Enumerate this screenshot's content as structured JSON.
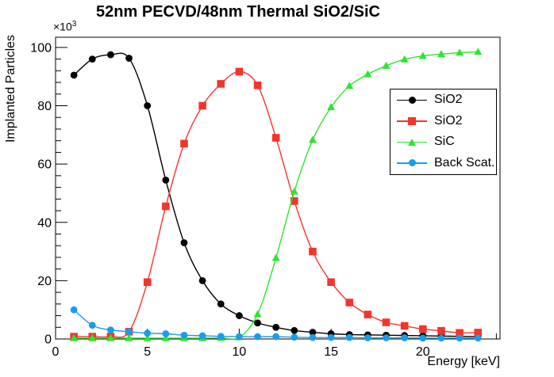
{
  "title": "52nm PECVD/48nm Thermal SiO2/SiC",
  "axes": {
    "x": {
      "title": "Energy [keV]",
      "ticks": [
        0,
        5,
        10,
        15,
        20
      ],
      "minor_step": 1,
      "range": [
        0,
        24.2
      ]
    },
    "y": {
      "title": "Implanted Particles",
      "exponent_base": "×10",
      "exponent": "3",
      "ticks": [
        0,
        20,
        40,
        60,
        80,
        100
      ],
      "minor_step": 4,
      "range": [
        0,
        103.5
      ]
    }
  },
  "legend": {
    "position": "right-middle",
    "items": [
      {
        "label": "SiO2",
        "marker": "circle",
        "color": "#000000"
      },
      {
        "label": "SiO2",
        "marker": "square",
        "color": "#f5342c"
      },
      {
        "label": "SiC",
        "marker": "triangle",
        "color": "#2ee52e"
      },
      {
        "label": "Back Scat.",
        "marker": "circle",
        "color": "#1a9ced"
      }
    ]
  },
  "chart_data": {
    "type": "line",
    "title": "52nm PECVD/48nm Thermal SiO2/SiC",
    "xlabel": "Energy [keV]",
    "ylabel": "Implanted Particles",
    "y_scale_exponent": "×10³ (values below are in thousands of particles)",
    "xlim": [
      0,
      24.2
    ],
    "ylim": [
      0,
      103.5
    ],
    "grid": false,
    "legend_position": "right-middle",
    "x": [
      1,
      2,
      3,
      4,
      5,
      6,
      7,
      8,
      9,
      10,
      11,
      12,
      13,
      14,
      15,
      16,
      17,
      18,
      19,
      20,
      21,
      22,
      23
    ],
    "series": [
      {
        "name": "SiO2",
        "marker": "circle",
        "color": "#000000",
        "values": [
          90.5,
          96,
          97.5,
          96.3,
          80,
          54.5,
          33,
          20,
          12,
          8,
          5.5,
          4,
          2.9,
          2.3,
          1.8,
          1.5,
          1.4,
          1.3,
          1.2,
          1.1,
          1.0,
          0.9,
          0.8
        ]
      },
      {
        "name": "SiO2",
        "marker": "square",
        "color": "#f5342c",
        "values": [
          0.8,
          0.8,
          0.8,
          2.5,
          19.5,
          45.5,
          67,
          80,
          87.5,
          91.7,
          87,
          69,
          47.3,
          30,
          19.5,
          12.5,
          8.4,
          5.7,
          4.5,
          3.4,
          2.8,
          2.1,
          2.2
        ]
      },
      {
        "name": "SiC",
        "marker": "triangle",
        "color": "#2ee52e",
        "values": [
          0.3,
          0.3,
          0.3,
          0.3,
          0.3,
          0.3,
          0.3,
          0.3,
          0.4,
          0.6,
          8.5,
          27.8,
          50.6,
          68.3,
          79.5,
          86.8,
          90.8,
          93.7,
          95.9,
          97.1,
          97.7,
          98.2,
          98.5
        ]
      },
      {
        "name": "Back Scat.",
        "marker": "circle",
        "color": "#1a9ced",
        "values": [
          10,
          4.7,
          3.1,
          2.5,
          2.0,
          1.8,
          1.3,
          1.1,
          0.9,
          0.8,
          0.8,
          0.8,
          0.6,
          0.5,
          0.5,
          0.5,
          0.4,
          0.4,
          0.4,
          0.3,
          0.3,
          0.3,
          0.3
        ]
      }
    ]
  }
}
